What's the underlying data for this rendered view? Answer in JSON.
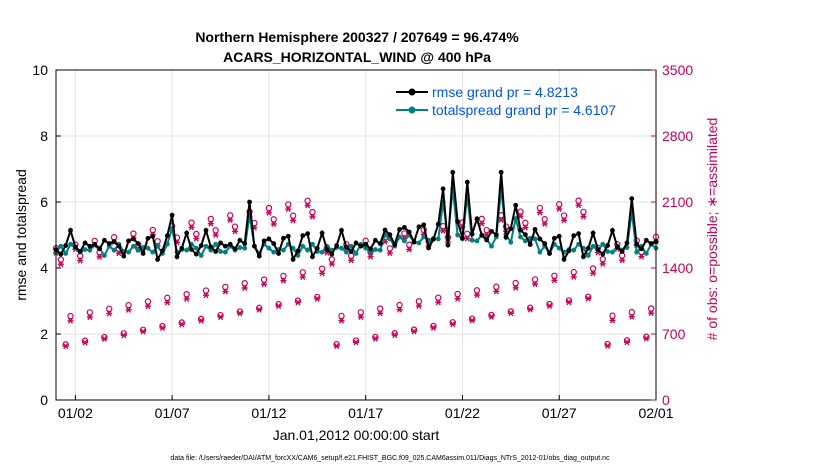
{
  "chart_data": {
    "type": "line",
    "title": [
      "Northern Hemisphere 200327 / 207649 = 96.474%",
      "ACARS_HORIZONTAL_WIND @ 400 hPa"
    ],
    "xlabel": "Jan.01,2012 00:00:00 start",
    "ylabel_left": "rmse and totalspread",
    "ylabel_right": "# of obs: o=possible; ∗=assimilated",
    "footer": "data file: /Users/raeder/DAI/ATM_forcXX/CAM6_setup/f.e21.FHIST_BGC.f09_025.CAM6assim.011/Diags_NTrS_2012-01/obs_diag_output.nc",
    "xlim": [
      0.5,
      31.5
    ],
    "ylim_left": [
      0,
      10
    ],
    "ylim_right": [
      0,
      3500
    ],
    "xticks": [
      1.5,
      6.5,
      11.5,
      16.5,
      21.5,
      26.5,
      31.5
    ],
    "xtick_labels": [
      "01/02",
      "01/07",
      "01/12",
      "01/17",
      "01/22",
      "01/27",
      "02/01"
    ],
    "yticks_left": [
      0,
      2,
      4,
      6,
      8,
      10
    ],
    "yticks_right": [
      0,
      700,
      1400,
      2100,
      2800,
      3500
    ],
    "grid": true,
    "legend": [
      "rmse grand pr = 4.8213",
      "totalspread grand pr = 4.6107"
    ],
    "colors": {
      "rmse": "#000000",
      "spread": "#008080",
      "obs": "#cc0055"
    },
    "pattern": [
      [
        0,
        4.8,
        4.6,
        450,
        420,
        1880,
        1830
      ],
      [
        0.25,
        4.5,
        4.6,
        750,
        700,
        1760,
        1710
      ],
      [
        0.5,
        4.6,
        4.5,
        1850,
        1800,
        860,
        840
      ],
      [
        0.75,
        4.9,
        4.6,
        1500,
        1450,
        1160,
        1110
      ]
    ],
    "peak_rmse": [
      [
        6.5,
        5.6
      ],
      [
        10.5,
        6.0
      ],
      [
        20.5,
        6.4
      ],
      [
        21.1,
        6.9
      ],
      [
        21.75,
        6.6
      ],
      [
        23.5,
        6.9
      ],
      [
        24.25,
        5.9
      ],
      [
        30.25,
        6.1
      ]
    ],
    "x_start": 0.5,
    "x_end": 31.5,
    "x_step": 0.25
  }
}
